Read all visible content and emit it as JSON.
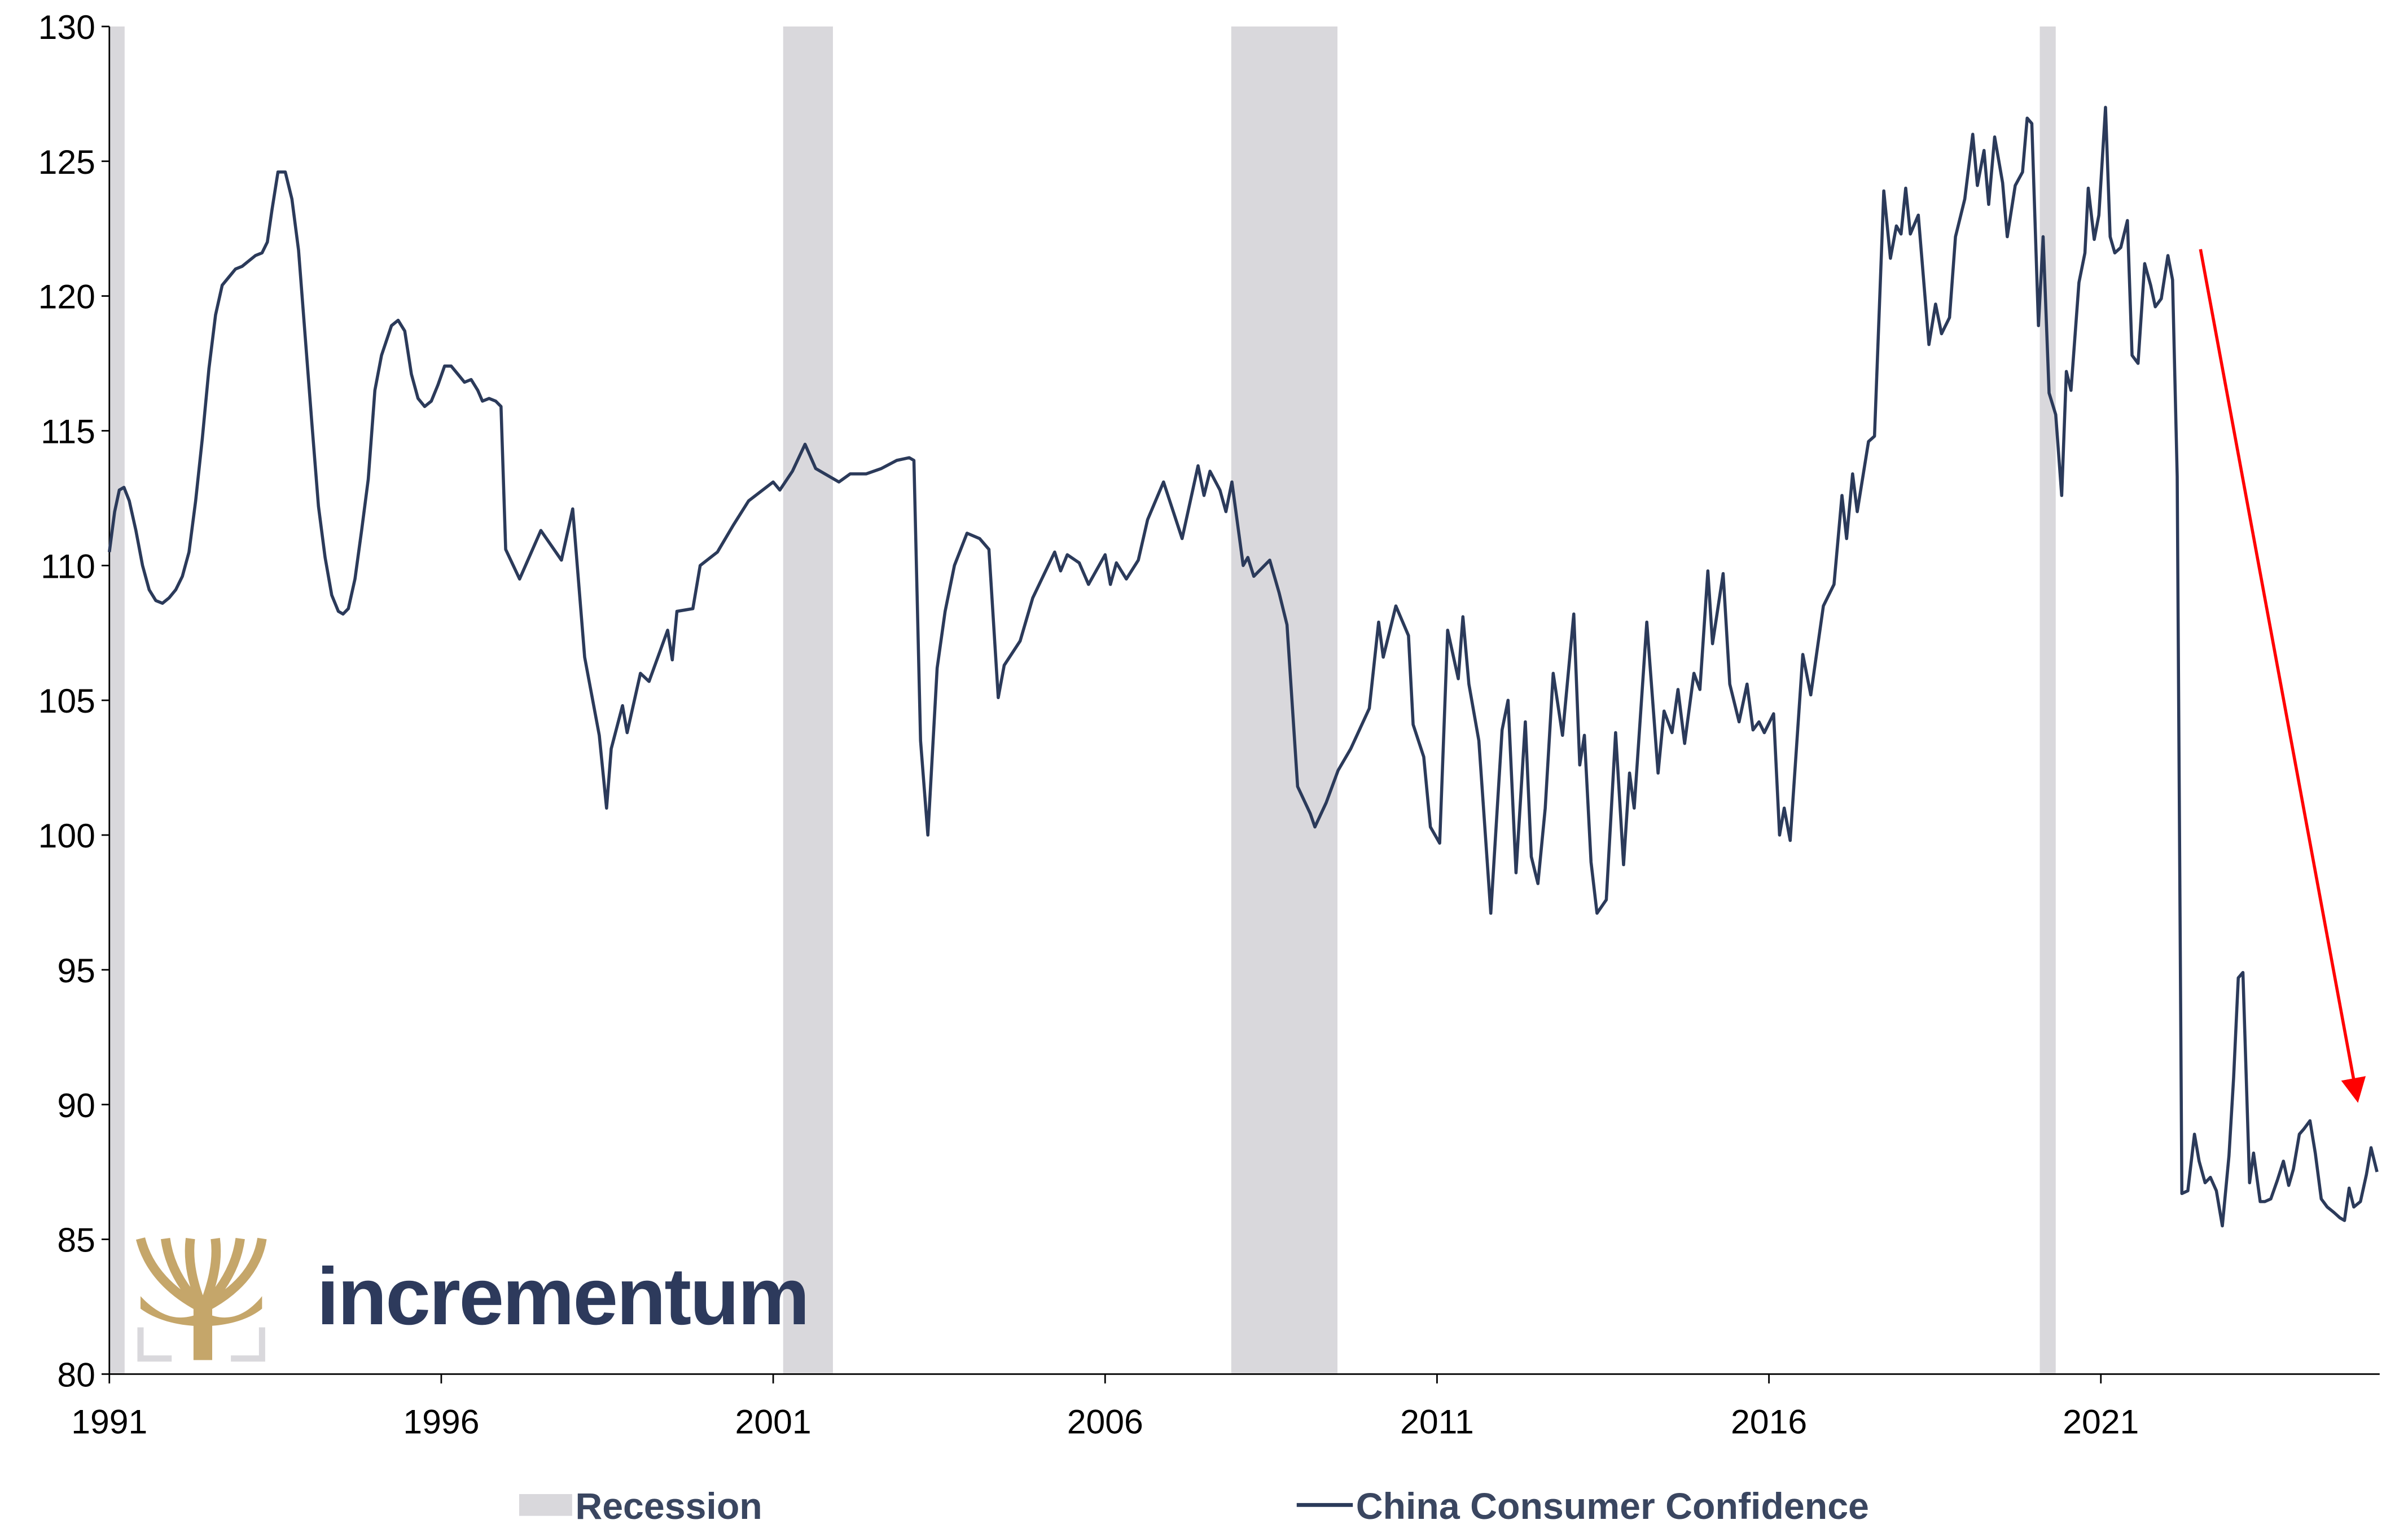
{
  "chart_data": {
    "type": "line",
    "xlim": [
      1991,
      2025.2
    ],
    "ylim": [
      80,
      130
    ],
    "xticks": [
      1991,
      1996,
      2001,
      2006,
      2011,
      2016,
      2021
    ],
    "yticks": [
      80,
      85,
      90,
      95,
      100,
      105,
      110,
      115,
      120,
      125,
      130
    ],
    "logo": "incrementum",
    "recessions": {
      "name": "Recession",
      "color": "#d9d8dc",
      "ranges": [
        [
          1991.0,
          1991.23
        ],
        [
          2001.15,
          2001.9
        ],
        [
          2007.9,
          2009.5
        ],
        [
          2020.08,
          2020.32
        ]
      ]
    },
    "x": [
      1991.0,
      1991.08,
      1991.15,
      1991.22,
      1991.3,
      1991.4,
      1991.5,
      1991.6,
      1991.7,
      1991.8,
      1991.9,
      1992.0,
      1992.1,
      1992.2,
      1992.3,
      1992.4,
      1992.5,
      1992.6,
      1992.7,
      1992.8,
      1992.9,
      1993.0,
      1993.1,
      1993.2,
      1993.3,
      1993.38,
      1993.45,
      1993.54,
      1993.65,
      1993.75,
      1993.85,
      1993.95,
      1994.05,
      1994.15,
      1994.25,
      1994.35,
      1994.45,
      1994.52,
      1994.6,
      1994.7,
      1994.8,
      1994.9,
      1995.0,
      1995.1,
      1995.25,
      1995.35,
      1995.45,
      1995.55,
      1995.65,
      1995.75,
      1995.85,
      1995.95,
      1996.05,
      1996.15,
      1996.25,
      1996.35,
      1996.45,
      1996.55,
      1996.62,
      1996.72,
      1996.82,
      1996.9,
      1996.97,
      1997.18,
      1997.5,
      1997.81,
      1997.98,
      1998.16,
      1998.38,
      1998.49,
      1998.56,
      1998.73,
      1998.8,
      1999.0,
      1999.13,
      1999.41,
      1999.48,
      1999.55,
      1999.79,
      1999.9,
      2000.16,
      2000.4,
      2000.63,
      2001.0,
      2001.1,
      2001.29,
      2001.48,
      2001.64,
      2001.99,
      2002.16,
      2002.4,
      2002.63,
      2002.86,
      2003.05,
      2003.12,
      2003.22,
      2003.33,
      2003.47,
      2003.59,
      2003.73,
      2003.92,
      2004.11,
      2004.25,
      2004.39,
      2004.48,
      2004.72,
      2004.91,
      2005.24,
      2005.33,
      2005.43,
      2005.61,
      2005.75,
      2006.0,
      2006.08,
      2006.17,
      2006.32,
      2006.5,
      2006.64,
      2006.88,
      2007.16,
      2007.4,
      2007.49,
      2007.58,
      2007.73,
      2007.82,
      2007.91,
      2008.08,
      2008.15,
      2008.24,
      2008.48,
      2008.62,
      2008.74,
      2008.9,
      2009.09,
      2009.16,
      2009.33,
      2009.51,
      2009.7,
      2009.98,
      2010.12,
      2010.19,
      2010.38,
      2010.57,
      2010.64,
      2010.8,
      2010.9,
      2011.04,
      2011.16,
      2011.32,
      2011.39,
      2011.48,
      2011.63,
      2011.81,
      2011.98,
      2012.07,
      2012.19,
      2012.33,
      2012.42,
      2012.52,
      2012.63,
      2012.75,
      2012.89,
      2013.06,
      2013.15,
      2013.22,
      2013.32,
      2013.41,
      2013.55,
      2013.69,
      2013.81,
      2013.9,
      2013.97,
      2014.16,
      2014.33,
      2014.42,
      2014.54,
      2014.63,
      2014.73,
      2014.87,
      2014.96,
      2015.08,
      2015.15,
      2015.31,
      2015.41,
      2015.55,
      2015.67,
      2015.76,
      2015.85,
      2015.93,
      2016.07,
      2016.16,
      2016.23,
      2016.32,
      2016.51,
      2016.63,
      2016.82,
      2016.98,
      2017.1,
      2017.17,
      2017.26,
      2017.33,
      2017.5,
      2017.59,
      2017.73,
      2017.83,
      2017.92,
      2017.99,
      2018.06,
      2018.13,
      2018.25,
      2018.41,
      2018.51,
      2018.6,
      2018.72,
      2018.81,
      2018.95,
      2019.07,
      2019.14,
      2019.24,
      2019.31,
      2019.4,
      2019.52,
      2019.59,
      2019.71,
      2019.82,
      2019.89,
      2019.96,
      2020.06,
      2020.13,
      2020.22,
      2020.32,
      2020.41,
      2020.48,
      2020.55,
      2020.67,
      2020.76,
      2020.81,
      2020.9,
      2020.97,
      2021.07,
      2021.14,
      2021.21,
      2021.3,
      2021.4,
      2021.47,
      2021.56,
      2021.66,
      2021.75,
      2021.82,
      2021.91,
      2022.01,
      2022.08,
      2022.15,
      2022.22,
      2022.31,
      2022.41,
      2022.48,
      2022.57,
      2022.65,
      2022.74,
      2022.83,
      2022.93,
      2023.0,
      2023.07,
      2023.14,
      2023.24,
      2023.3,
      2023.4,
      2023.47,
      2023.56,
      2023.66,
      2023.75,
      2023.83,
      2023.9,
      2023.99,
      2024.06,
      2024.15,
      2024.23,
      2024.32,
      2024.41,
      2024.51,
      2024.6,
      2024.67,
      2024.74,
      2024.81,
      2024.91,
      2025.0,
      2025.07,
      2025.16
    ],
    "series": [
      {
        "name": "China Consumer Confidence",
        "color": "#2b3a5a",
        "values": [
          110.5,
          112,
          112.8,
          112.9,
          112.4,
          111.3,
          110,
          109.1,
          108.7,
          108.6,
          108.8,
          109.1,
          109.6,
          110.5,
          112.4,
          114.7,
          117.3,
          119.3,
          120.4,
          120.7,
          121,
          121.1,
          121.3,
          121.5,
          121.6,
          122,
          123.2,
          124.6,
          124.6,
          123.6,
          121.7,
          118.5,
          115.3,
          112.2,
          110.3,
          108.9,
          108.3,
          108.2,
          108.4,
          109.5,
          111.3,
          113.2,
          116.5,
          117.8,
          118.9,
          119.1,
          118.7,
          117.1,
          116.2,
          115.9,
          116.1,
          116.7,
          117.4,
          117.4,
          117.1,
          116.8,
          116.9,
          116.5,
          116.1,
          116.2,
          116.1,
          115.9,
          110.6,
          109.5,
          111.3,
          110.2,
          112.1,
          106.6,
          103.7,
          101,
          103.2,
          104.8,
          103.8,
          106,
          105.7,
          107.6,
          106.5,
          108.3,
          108.4,
          110,
          110.5,
          111.5,
          112.4,
          113.1,
          112.8,
          113.5,
          114.5,
          113.6,
          113.1,
          113.4,
          113.4,
          113.6,
          113.9,
          114,
          113.9,
          103.5,
          100,
          106.2,
          108.3,
          110,
          111.2,
          111,
          110.6,
          105.1,
          106.3,
          107.2,
          108.8,
          110.5,
          109.8,
          110.4,
          110.1,
          109.3,
          110.4,
          109.3,
          110.1,
          109.5,
          110.2,
          111.7,
          113.1,
          111,
          113.7,
          112.6,
          113.5,
          112.8,
          112,
          113.1,
          110,
          110.3,
          109.6,
          110.2,
          109,
          107.8,
          101.8,
          100.8,
          100.3,
          101.2,
          102.4,
          103.2,
          104.7,
          107.9,
          106.6,
          108.5,
          107.4,
          104.1,
          102.9,
          100.3,
          99.7,
          107.6,
          105.8,
          108.1,
          105.6,
          103.5,
          97.1,
          103.9,
          105,
          98.6,
          104.2,
          99.2,
          98.2,
          101,
          106,
          103.7,
          108.2,
          102.6,
          103.7,
          99,
          97.1,
          97.6,
          103.8,
          98.9,
          102.3,
          101,
          107.9,
          102.3,
          104.6,
          103.8,
          105.4,
          103.4,
          106,
          105.4,
          109.8,
          107.1,
          109.7,
          105.6,
          104.2,
          105.6,
          103.9,
          104.2,
          103.8,
          104.5,
          100,
          101,
          99.8,
          106.7,
          105.2,
          108.5,
          109.3,
          112.6,
          111,
          113.4,
          112,
          114.6,
          114.8,
          123.9,
          121.4,
          122.6,
          122.3,
          124,
          122.3,
          123,
          118.2,
          119.7,
          118.6,
          119.2,
          122.2,
          123.6,
          126,
          124.1,
          125.4,
          123.4,
          125.9,
          124.2,
          122.2,
          124.1,
          124.6,
          126.6,
          126.4,
          118.9,
          122.2,
          116.4,
          115.6,
          112.6,
          117.2,
          116.5,
          120.5,
          121.6,
          124,
          122.1,
          123,
          127,
          122.2,
          121.6,
          121.8,
          122.8,
          117.8,
          117.5,
          121.2,
          120.4,
          119.6,
          119.9,
          121.5,
          120.6,
          113.3,
          86.7,
          86.8,
          88.9,
          87.9,
          87.1,
          87.3,
          86.8,
          85.5,
          88.1,
          91,
          94.7,
          94.9,
          87.1,
          88.2,
          86.4,
          86.4,
          86.5,
          87.2,
          87.9,
          87,
          87.6,
          88.9,
          89.1,
          89.4,
          88.2,
          86.5,
          86.2,
          86,
          85.8,
          85.7,
          86.9,
          86.2,
          86.4,
          87.4,
          88.4,
          87.5
        ]
      }
    ]
  }
}
